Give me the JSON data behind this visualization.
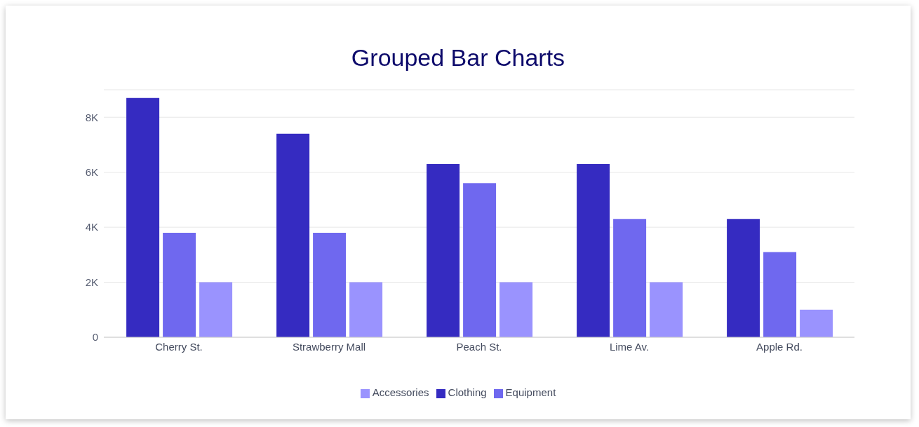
{
  "chart_data": {
    "type": "bar",
    "title": "Grouped Bar Charts",
    "categories": [
      "Cherry St.",
      "Strawberry Mall",
      "Peach St.",
      "Lime Av.",
      "Apple Rd."
    ],
    "series": [
      {
        "name": "Clothing",
        "color": "#352bc1",
        "values": [
          8700,
          7400,
          6300,
          6300,
          4300
        ]
      },
      {
        "name": "Equipment",
        "color": "#6f68ef",
        "values": [
          3800,
          3800,
          5600,
          4300,
          3100
        ]
      },
      {
        "name": "Accessories",
        "color": "#9a93fe",
        "values": [
          2000,
          2000,
          2000,
          2000,
          1000
        ]
      }
    ],
    "ylim": [
      0,
      9000
    ],
    "yticks": [
      {
        "value": 0,
        "label": "0"
      },
      {
        "value": 2000,
        "label": "2K"
      },
      {
        "value": 4000,
        "label": "4K"
      },
      {
        "value": 6000,
        "label": "6K"
      },
      {
        "value": 8000,
        "label": "8K"
      }
    ],
    "grid": "y",
    "legend": "bottom"
  }
}
